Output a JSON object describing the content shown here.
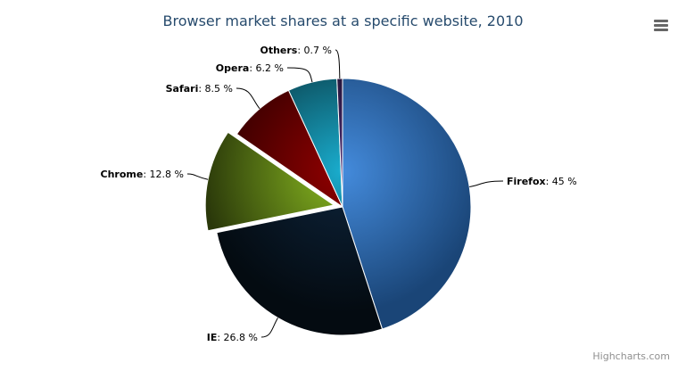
{
  "chart_data": {
    "type": "pie",
    "title": "Browser market shares at a specific website, 2010",
    "label_format": "{name}: {value} %",
    "slices": [
      {
        "name": "Firefox",
        "value": 45.0,
        "color": "#2f7ed8"
      },
      {
        "name": "IE",
        "value": 26.8,
        "color": "#0d233a"
      },
      {
        "name": "Chrome",
        "value": 12.8,
        "color": "#8bbc21",
        "sliced": true
      },
      {
        "name": "Safari",
        "value": 8.5,
        "color": "#910000"
      },
      {
        "name": "Opera",
        "value": 6.2,
        "color": "#1aadce"
      },
      {
        "name": "Others",
        "value": 0.7,
        "color": "#492970"
      }
    ]
  },
  "credits": "Highcharts.com",
  "menu_icon": "hamburger-menu-icon"
}
